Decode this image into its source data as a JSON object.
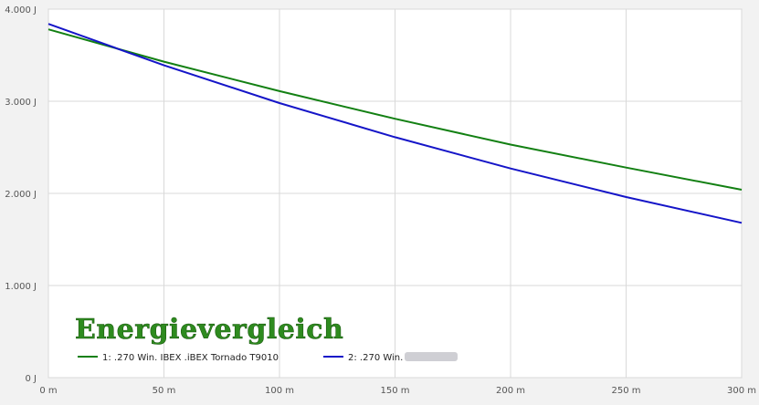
{
  "chart_data": {
    "type": "line",
    "title": "Energievergleich",
    "xlabel": "",
    "ylabel": "",
    "xlim": [
      0,
      300
    ],
    "ylim": [
      0,
      4000
    ],
    "grid": true,
    "legend_position": "bottom-left",
    "x_ticks": [
      {
        "value": 0,
        "label": "0 m"
      },
      {
        "value": 50,
        "label": "50 m"
      },
      {
        "value": 100,
        "label": "100 m"
      },
      {
        "value": 150,
        "label": "150 m"
      },
      {
        "value": 200,
        "label": "200 m"
      },
      {
        "value": 250,
        "label": "250 m"
      },
      {
        "value": 300,
        "label": "300 m"
      }
    ],
    "y_ticks": [
      {
        "value": 0,
        "label": "0 J"
      },
      {
        "value": 1000,
        "label": "1.000 J"
      },
      {
        "value": 2000,
        "label": "2.000 J"
      },
      {
        "value": 3000,
        "label": "3.000 J"
      },
      {
        "value": 4000,
        "label": "4.000 J"
      }
    ],
    "x": [
      0,
      50,
      100,
      150,
      200,
      250,
      300
    ],
    "series": [
      {
        "name": "1: .270 Win. IBEX .iBEX Tornado T9010",
        "color": "#138013",
        "values": [
          3780,
          3430,
          3110,
          2810,
          2530,
          2280,
          2040
        ]
      },
      {
        "name": "2: .270 Win.",
        "color": "#1515c8",
        "values": [
          3840,
          3390,
          2980,
          2610,
          2270,
          1960,
          1680
        ]
      }
    ]
  }
}
